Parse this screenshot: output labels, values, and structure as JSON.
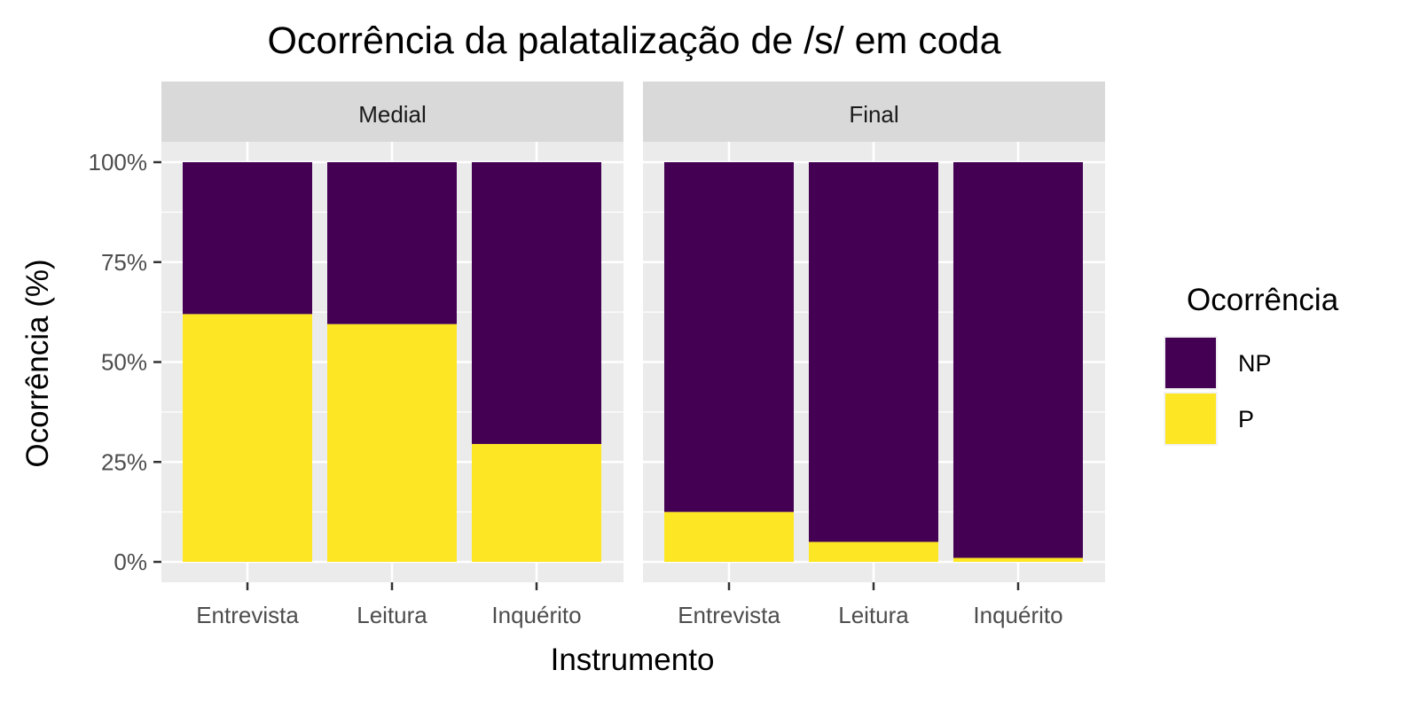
{
  "chart_data": {
    "type": "bar",
    "stacked": true,
    "title": "Ocorrência da palatalização de /s/ em coda",
    "xlabel": "Instrumento",
    "ylabel": "Ocorrência (%)",
    "ylim": [
      0,
      100
    ],
    "yticks": [
      "0%",
      "25%",
      "50%",
      "75%",
      "100%"
    ],
    "categories": [
      "Entrevista",
      "Leitura",
      "Inquérito"
    ],
    "legend": {
      "title": "Ocorrência",
      "position": "right",
      "entries": [
        {
          "label": "NP",
          "color": "#440154"
        },
        {
          "label": "P",
          "color": "#FDE725"
        }
      ]
    },
    "facets": [
      {
        "label": "Medial",
        "series": [
          {
            "name": "P",
            "color": "#FDE725",
            "values": [
              62,
              59.5,
              29.5
            ]
          },
          {
            "name": "NP",
            "color": "#440154",
            "values": [
              38,
              40.5,
              70.5
            ]
          }
        ]
      },
      {
        "label": "Final",
        "series": [
          {
            "name": "P",
            "color": "#FDE725",
            "values": [
              12.5,
              5,
              1
            ]
          },
          {
            "name": "NP",
            "color": "#440154",
            "values": [
              87.5,
              95,
              99
            ]
          }
        ]
      }
    ],
    "grid": true,
    "colors": {
      "panel": "#EBEBEB",
      "strip": "#D9D9D9",
      "grid_major": "#FFFFFF"
    }
  }
}
